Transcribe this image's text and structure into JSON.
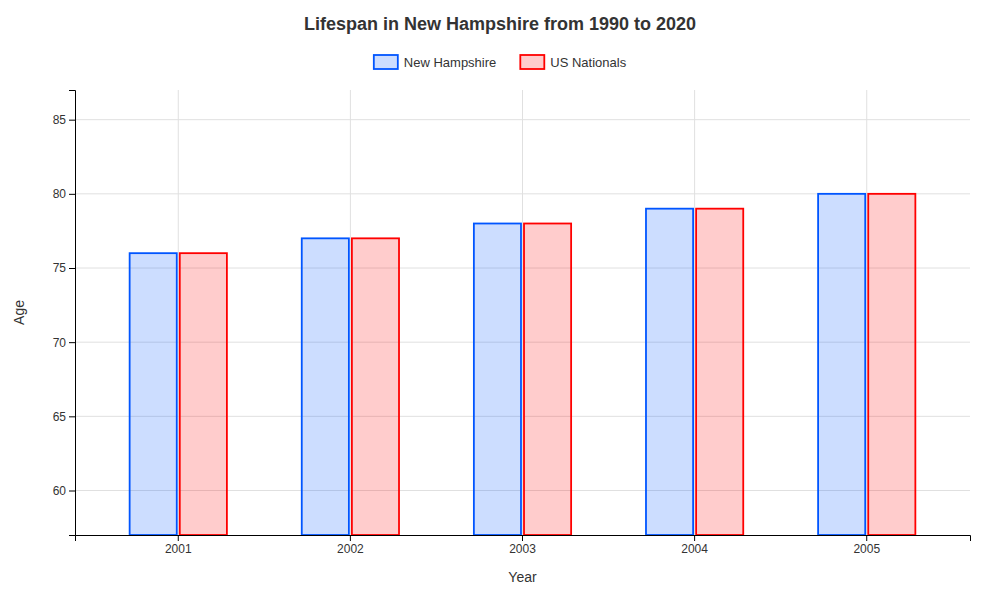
{
  "chart_data": {
    "type": "bar",
    "title": "Lifespan in New Hampshire from 1990 to 2020",
    "x_label": "Year",
    "y_label": "Age",
    "categories": [
      "2001",
      "2002",
      "2003",
      "2004",
      "2005"
    ],
    "series": [
      {
        "name": "New Hampshire",
        "color": "#0055ff",
        "values": [
          76,
          77,
          78,
          79,
          80
        ]
      },
      {
        "name": "US Nationals",
        "color": "#ff0000",
        "values": [
          76,
          77,
          78,
          79,
          80
        ]
      }
    ],
    "ylim": [
      57,
      87
    ],
    "yticks": [
      60,
      65,
      70,
      75,
      80,
      85
    ],
    "grid": true,
    "legend": "top"
  }
}
